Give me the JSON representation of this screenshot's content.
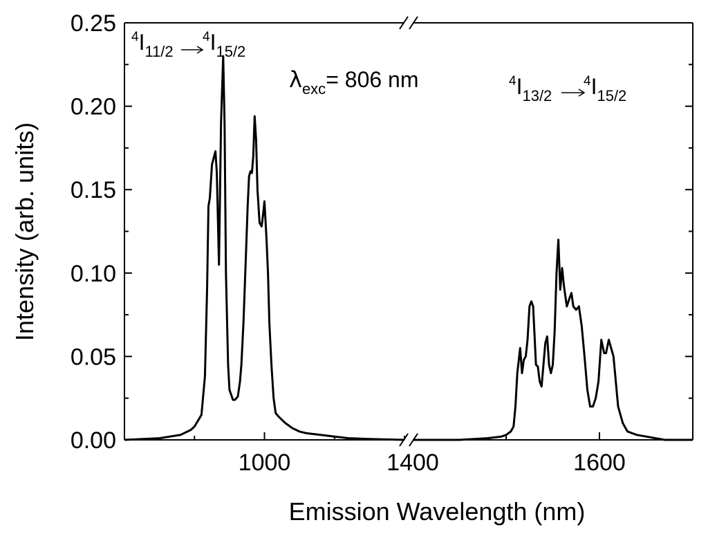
{
  "chart_data": {
    "type": "line",
    "title": "",
    "xlabel": "Emission Wavelength (nm)",
    "ylabel": "Intensity (arb. units)",
    "ylim": [
      0,
      0.25
    ],
    "x_segments": [
      {
        "range": [
          800,
          1200
        ]
      },
      {
        "range": [
          1400,
          1700
        ]
      }
    ],
    "x_ticks": [
      {
        "value": 1000,
        "label": "1000"
      },
      {
        "value": 1400,
        "label": "1400"
      },
      {
        "value": 1600,
        "label": "1600"
      }
    ],
    "y_ticks": [
      {
        "value": 0.0,
        "label": "0.00"
      },
      {
        "value": 0.05,
        "label": "0.05"
      },
      {
        "value": 0.1,
        "label": "0.10"
      },
      {
        "value": 0.15,
        "label": "0.15"
      },
      {
        "value": 0.2,
        "label": "0.20"
      },
      {
        "value": 0.25,
        "label": "0.25"
      }
    ],
    "axis_break": true,
    "grid": false,
    "line_color": "#000000",
    "series": [
      {
        "x": [
          800,
          850,
          880,
          895,
          900,
          910,
          915,
          918,
          920,
          922,
          925,
          930,
          932,
          935,
          938,
          941,
          943,
          945,
          948,
          950,
          955,
          958,
          962,
          965,
          967,
          970,
          973,
          976,
          978,
          980,
          982,
          984,
          986,
          988,
          990,
          993,
          996,
          998,
          1000,
          1003,
          1005,
          1007,
          1010,
          1013,
          1016,
          1020,
          1025,
          1030,
          1040,
          1050,
          1060,
          1080,
          1100,
          1120,
          1150,
          1200
        ],
        "y": [
          0.0,
          0.001,
          0.003,
          0.006,
          0.008,
          0.015,
          0.038,
          0.09,
          0.14,
          0.145,
          0.165,
          0.173,
          0.16,
          0.105,
          0.19,
          0.23,
          0.19,
          0.1,
          0.045,
          0.03,
          0.024,
          0.024,
          0.026,
          0.035,
          0.045,
          0.07,
          0.105,
          0.14,
          0.158,
          0.161,
          0.16,
          0.17,
          0.194,
          0.18,
          0.15,
          0.13,
          0.128,
          0.135,
          0.143,
          0.12,
          0.1,
          0.07,
          0.045,
          0.025,
          0.016,
          0.014,
          0.012,
          0.01,
          0.007,
          0.005,
          0.004,
          0.003,
          0.002,
          0.001,
          0.0005,
          0.0
        ]
      },
      {
        "x": [
          1400,
          1450,
          1480,
          1495,
          1500,
          1505,
          1508,
          1510,
          1512,
          1515,
          1517,
          1519,
          1521,
          1523,
          1525,
          1527,
          1529,
          1532,
          1534,
          1536,
          1538,
          1540,
          1542,
          1544,
          1546,
          1548,
          1550,
          1552,
          1554,
          1556,
          1558,
          1560,
          1562,
          1565,
          1568,
          1570,
          1572,
          1575,
          1578,
          1581,
          1584,
          1587,
          1590,
          1593,
          1596,
          1599,
          1602,
          1605,
          1607,
          1610,
          1615,
          1620,
          1625,
          1630,
          1640,
          1650,
          1660,
          1670,
          1700
        ],
        "y": [
          0.0,
          0.0,
          0.001,
          0.002,
          0.003,
          0.005,
          0.008,
          0.02,
          0.04,
          0.055,
          0.04,
          0.048,
          0.05,
          0.06,
          0.08,
          0.083,
          0.08,
          0.045,
          0.044,
          0.035,
          0.032,
          0.045,
          0.058,
          0.062,
          0.045,
          0.04,
          0.045,
          0.065,
          0.1,
          0.12,
          0.09,
          0.103,
          0.092,
          0.08,
          0.085,
          0.088,
          0.08,
          0.078,
          0.08,
          0.068,
          0.05,
          0.03,
          0.02,
          0.02,
          0.025,
          0.035,
          0.06,
          0.052,
          0.052,
          0.06,
          0.05,
          0.02,
          0.01,
          0.005,
          0.003,
          0.002,
          0.001,
          0.0,
          0.0
        ]
      }
    ],
    "annotations": {
      "transition_1": {
        "sup_left": "4",
        "main_left": "I",
        "sub_left": "11/2",
        "sup_right": "4",
        "main_right": "I",
        "sub_right": "15/2"
      },
      "excitation": {
        "symbol": "λ",
        "sub": "exc",
        "text": "= 806 nm"
      },
      "transition_2": {
        "sup_left": "4",
        "main_left": "I",
        "sub_left": "13/2",
        "sup_right": "4",
        "main_right": "I",
        "sub_right": "15/2"
      }
    }
  }
}
